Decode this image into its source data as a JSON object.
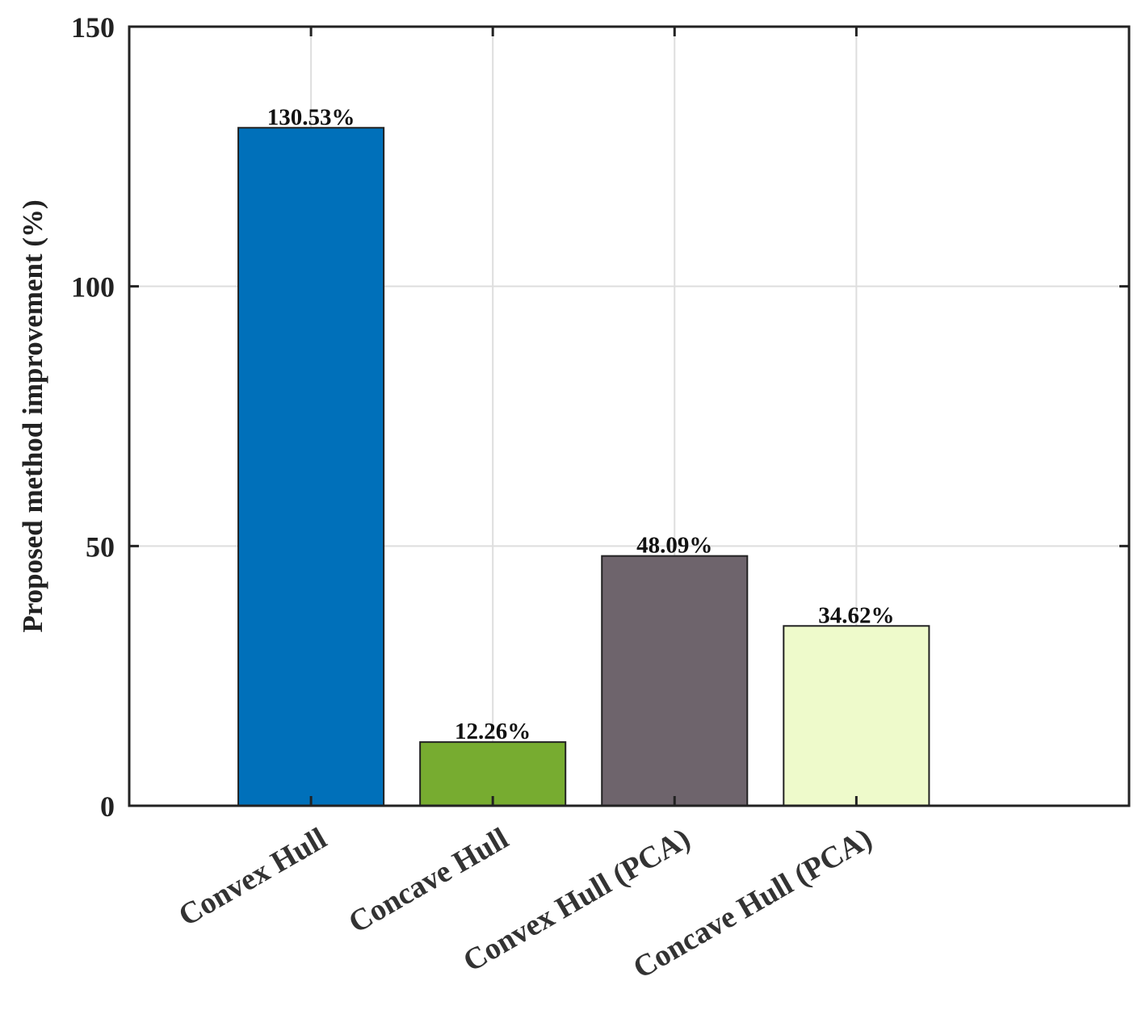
{
  "chart_data": {
    "type": "bar",
    "categories": [
      "Convex Hull",
      "Concave Hull",
      "Convex Hull (PCA)",
      "Concave Hull (PCA)"
    ],
    "values": [
      130.53,
      12.26,
      48.09,
      34.62
    ],
    "data_labels": [
      "130.53%",
      "12.26%",
      "48.09%",
      "34.62%"
    ],
    "colors": [
      "#0070BA",
      "#77AC30",
      "#6E646C",
      "#EEFACB"
    ],
    "title": "",
    "xlabel": "",
    "ylabel": "Proposed method improvement (%)",
    "ylim": [
      0,
      150
    ],
    "yticks": [
      0,
      50,
      100,
      150
    ],
    "xlim": [
      0,
      5.5
    ],
    "grid": true,
    "legend": "none"
  }
}
